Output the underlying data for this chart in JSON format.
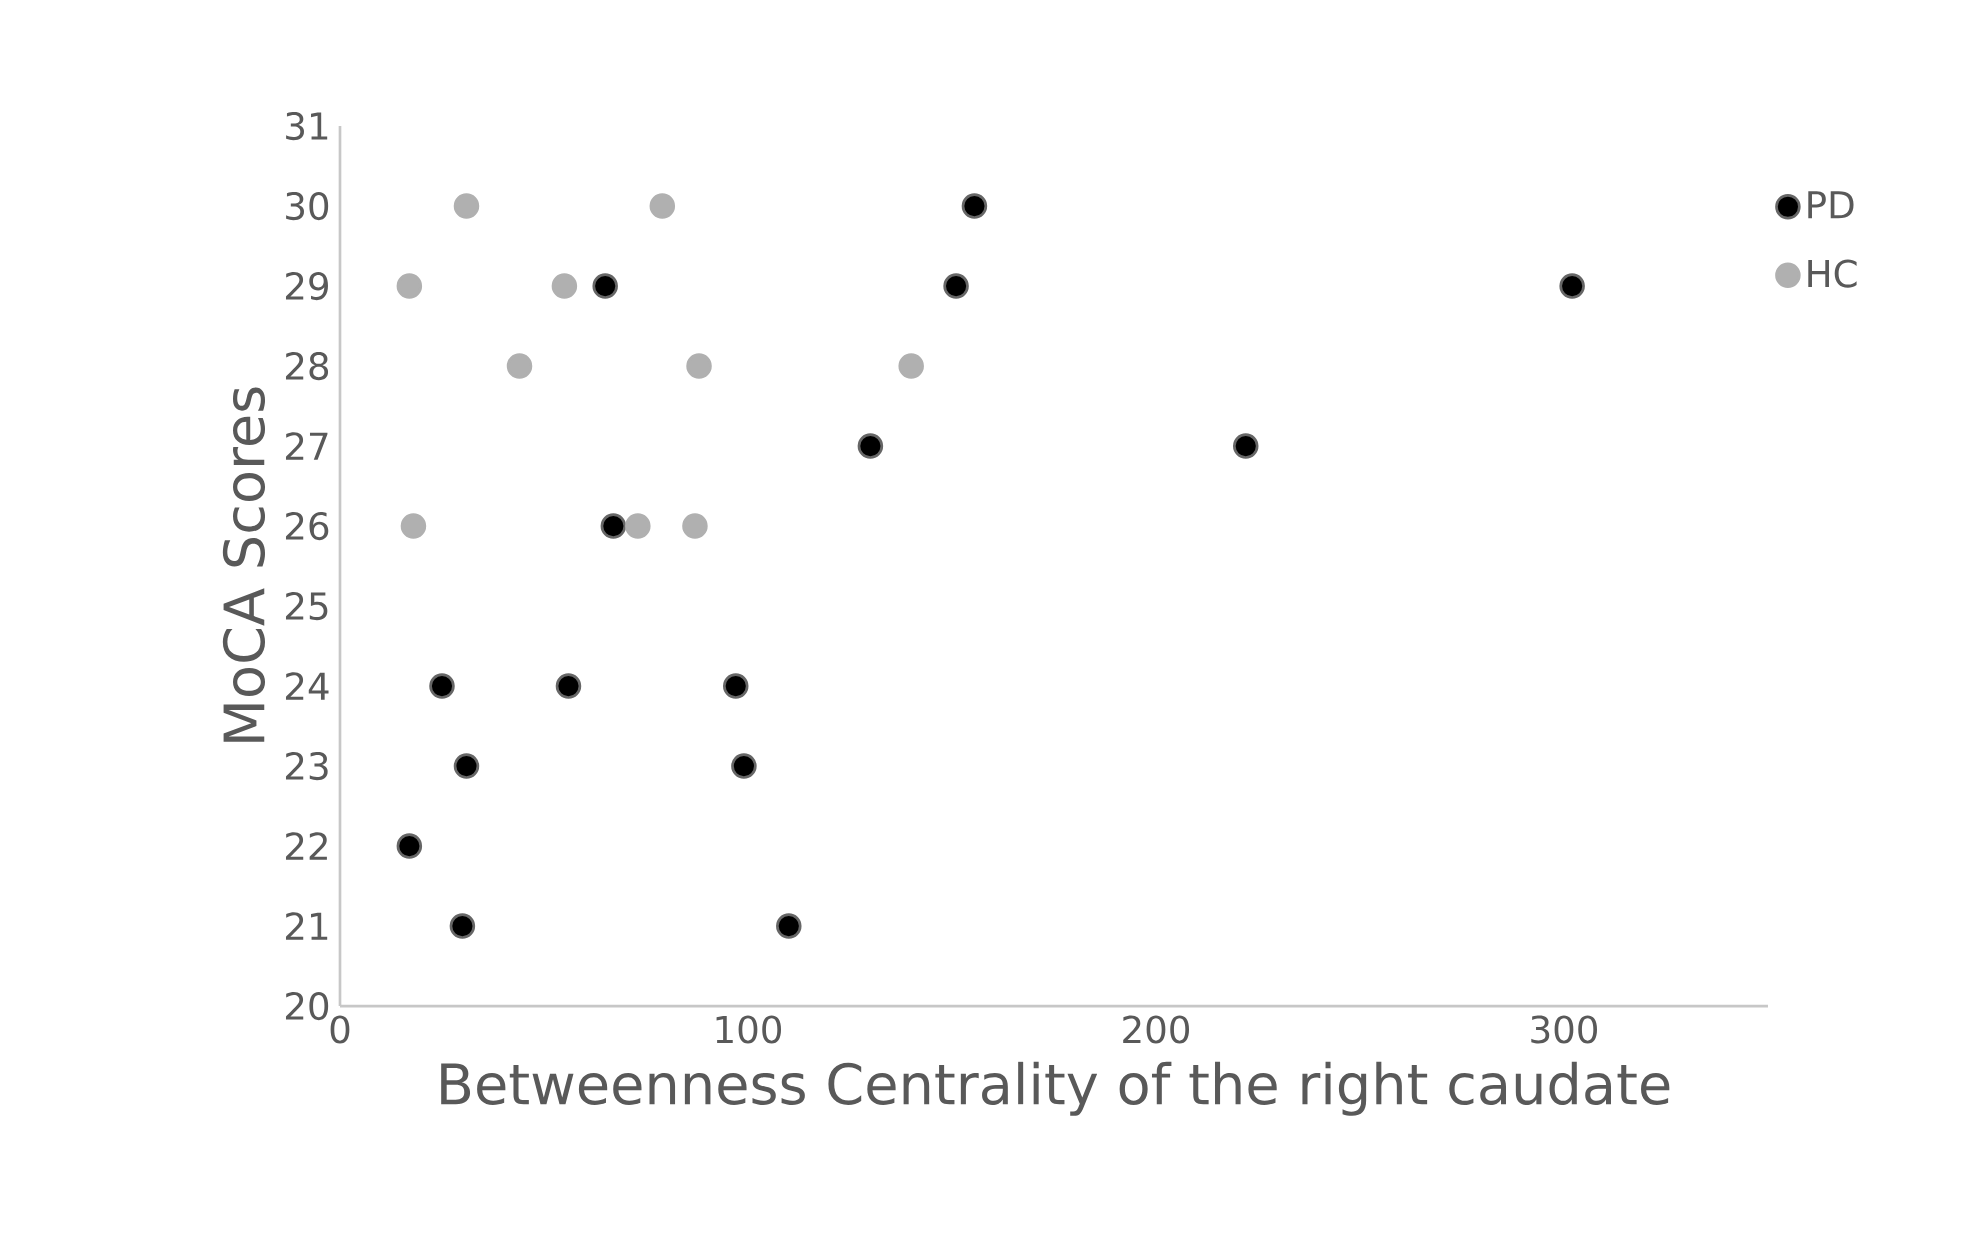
{
  "chart_data": {
    "type": "scatter",
    "xlabel": "Betweenness Centrality of the right caudate",
    "ylabel": "MoCA Scores",
    "xlim": [
      0,
      350
    ],
    "xticks": [
      0,
      100,
      200,
      300
    ],
    "ylim": [
      20,
      31
    ],
    "yticks": [
      20,
      21,
      22,
      23,
      24,
      25,
      26,
      27,
      28,
      29,
      30,
      31
    ],
    "marker": "circle",
    "legend": "top right",
    "grid": false,
    "series": [
      {
        "name": "PD",
        "color": "#000000",
        "x": [
          155.5,
          151,
          65,
          302,
          130,
          222,
          67,
          25,
          56,
          97,
          31,
          99,
          17,
          30,
          110
        ],
        "values": [
          30,
          29,
          29,
          29,
          27,
          27,
          26,
          24,
          24,
          24,
          23,
          23,
          22,
          21,
          21
        ]
      },
      {
        "name": "HC",
        "color": "#b0b0b0",
        "x": [
          31,
          79,
          17,
          55,
          44,
          88,
          140,
          18,
          73,
          87
        ],
        "values": [
          30,
          30,
          29,
          29,
          28,
          28,
          28,
          26,
          26,
          26
        ]
      }
    ]
  }
}
